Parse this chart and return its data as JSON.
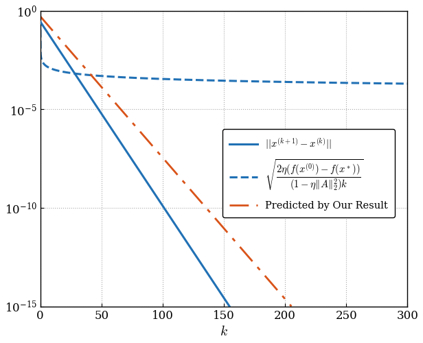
{
  "title": "",
  "xlabel": "$k$",
  "ylabel": "",
  "xlim": [
    0,
    300
  ],
  "ylim_log": [
    -15,
    0
  ],
  "x_ticks": [
    0,
    50,
    100,
    150,
    200,
    250,
    300
  ],
  "y_ticks_exp": [
    0,
    -5,
    -10,
    -15
  ],
  "solid_color": "#2171B5",
  "dashed_color": "#2171B5",
  "dashdot_color": "#D95319",
  "solid_linewidth": 2.2,
  "dashed_linewidth": 2.2,
  "dashdot_linewidth": 2.0,
  "figsize": [
    6.16,
    5.0
  ],
  "dpi": 100,
  "n_points": 1000,
  "background_color": "#FFFFFF",
  "grid_color": "#AAAAAA",
  "grid_linestyle": "dotted",
  "solid_start": 0.28,
  "solid_decay": 0.215,
  "dashed_C": 0.00035,
  "dashed_start": 0.4,
  "dashed_k_transition": 8,
  "dashdot_start": 0.52,
  "dashdot_decay": 0.165,
  "floor": 1e-16,
  "solid_stop_k": 152,
  "dashdot_stop_k": 158
}
